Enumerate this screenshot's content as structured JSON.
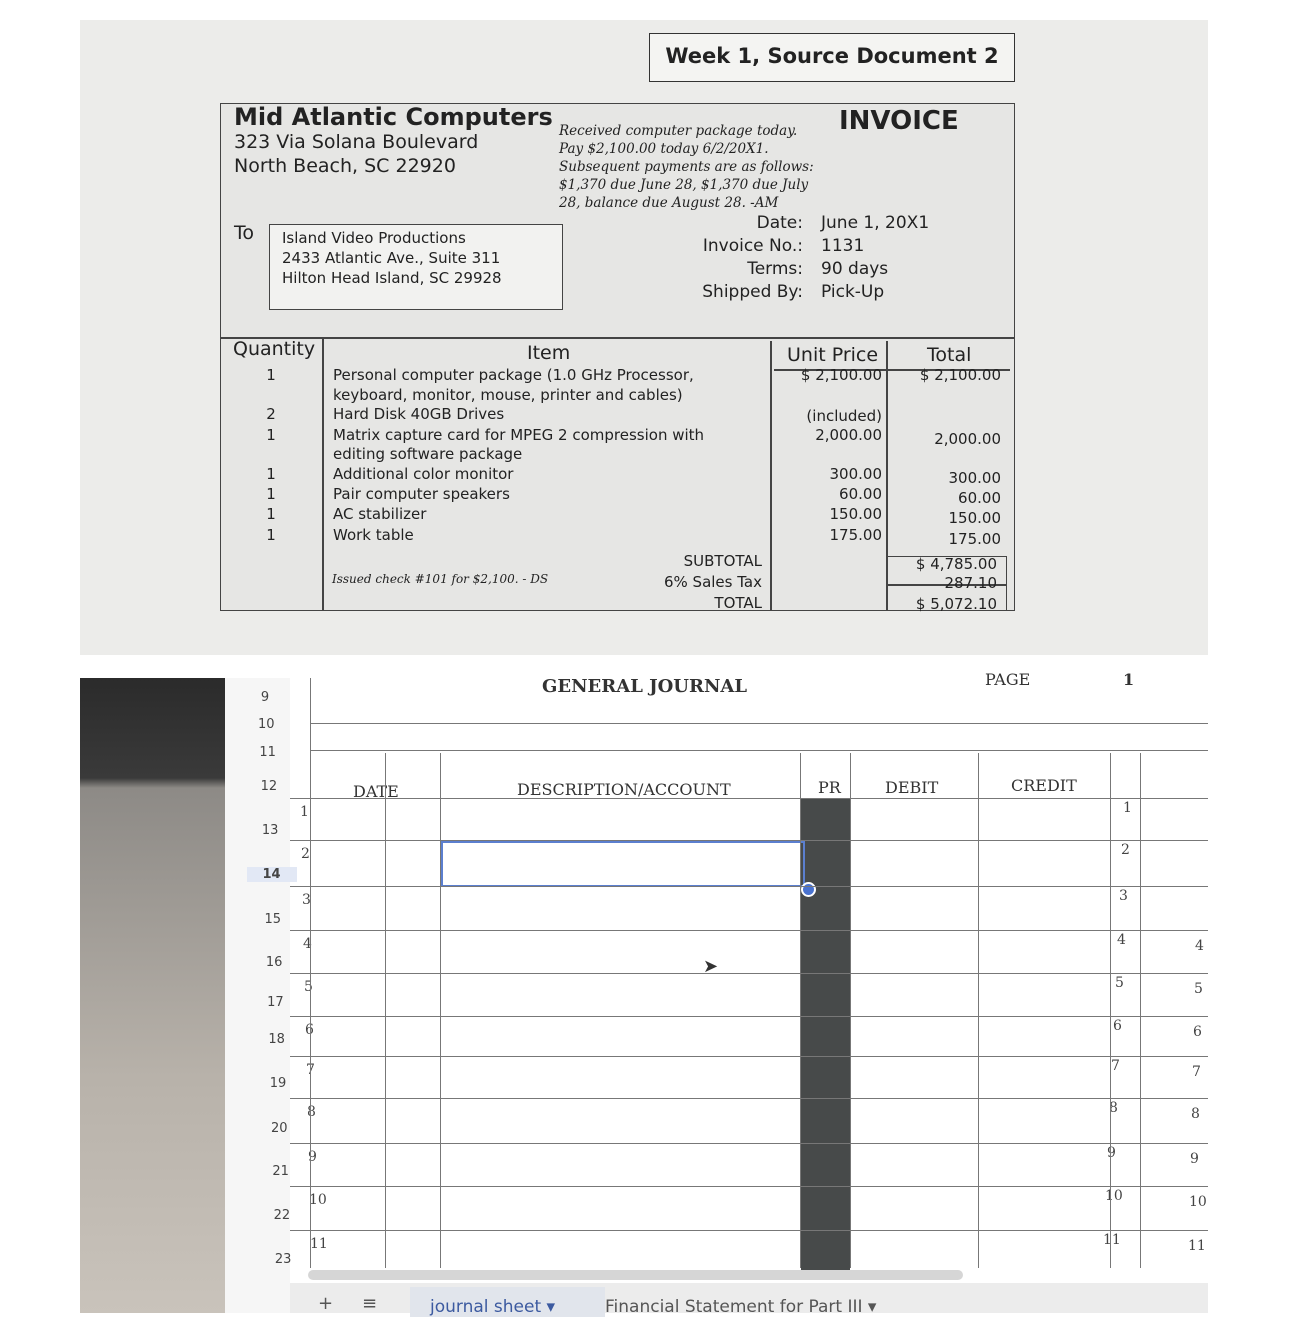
{
  "source_title": "Week 1, Source Document 2",
  "invoice": {
    "company": "Mid Atlantic Computers",
    "address1": "323 Via Solana Boulevard",
    "address2": "North Beach, SC 22920",
    "heading": "INVOICE",
    "note": [
      "Received computer package today.",
      "Pay $2,100.00 today 6/2/20X1.",
      "Subsequent payments are as follows:",
      "$1,370 due June 28, $1,370 due July",
      "28, balance due August 28. -AM"
    ],
    "to_label": "To",
    "to": [
      "Island Video Productions",
      "2433 Atlantic Ave., Suite 311",
      "Hilton Head Island, SC  29928"
    ],
    "meta": [
      {
        "label": "Date:",
        "value": "June 1, 20X1"
      },
      {
        "label": "Invoice No.:",
        "value": "1131"
      },
      {
        "label": "Terms:",
        "value": "90 days"
      },
      {
        "label": "Shipped By:",
        "value": "Pick-Up"
      }
    ],
    "columns": [
      "Quantity",
      "Item",
      "Unit Price",
      "Total"
    ],
    "rows": [
      {
        "qty": "1",
        "item": "Personal computer package (1.0 GHz Processor,",
        "price": "$ 2,100.00",
        "total": "$ 2,100.00"
      },
      {
        "qty": "",
        "item": "keyboard, monitor, mouse, printer and cables)",
        "price": "",
        "total": ""
      },
      {
        "qty": "2",
        "item": "Hard Disk 40GB Drives",
        "price": "(included)",
        "total": ""
      },
      {
        "qty": "1",
        "item": "Matrix capture card for MPEG 2 compression with",
        "price": "2,000.00",
        "total": "2,000.00"
      },
      {
        "qty": "",
        "item": "editing software package",
        "price": "",
        "total": ""
      },
      {
        "qty": "1",
        "item": "Additional color monitor",
        "price": "300.00",
        "total": "300.00"
      },
      {
        "qty": "1",
        "item": "Pair computer speakers",
        "price": "60.00",
        "total": "60.00"
      },
      {
        "qty": "1",
        "item": "AC stabilizer",
        "price": "150.00",
        "total": "150.00"
      },
      {
        "qty": "1",
        "item": "Work table",
        "price": "175.00",
        "total": "175.00"
      }
    ],
    "check_note": "Issued check #101 for $2,100. - DS",
    "subtotal_label": "SUBTOTAL",
    "subtotal": "$ 4,785.00",
    "tax_label": "6% Sales Tax",
    "tax": "287.10",
    "total_label": "TOTAL",
    "total": "$ 5,072.10"
  },
  "sheet": {
    "title": "GENERAL JOURNAL",
    "page_label": "PAGE",
    "page_num": "1",
    "row_headers": [
      "9",
      "10",
      "11",
      "12",
      "13",
      "14",
      "15",
      "16",
      "17",
      "18",
      "19",
      "20",
      "21",
      "22",
      "23"
    ],
    "columns": {
      "date": "DATE",
      "desc": "DESCRIPTION/ACCOUNT",
      "pr": "PR",
      "debit": "DEBIT",
      "credit": "CREDIT"
    },
    "line_numbers": [
      "1",
      "2",
      "3",
      "4",
      "5",
      "6",
      "7",
      "8",
      "9",
      "10",
      "11"
    ],
    "tabs": [
      {
        "label": "journal sheet"
      },
      {
        "label": "Financial Statement for Part III"
      }
    ],
    "add_sheet": "+",
    "all_sheets": "≡"
  }
}
